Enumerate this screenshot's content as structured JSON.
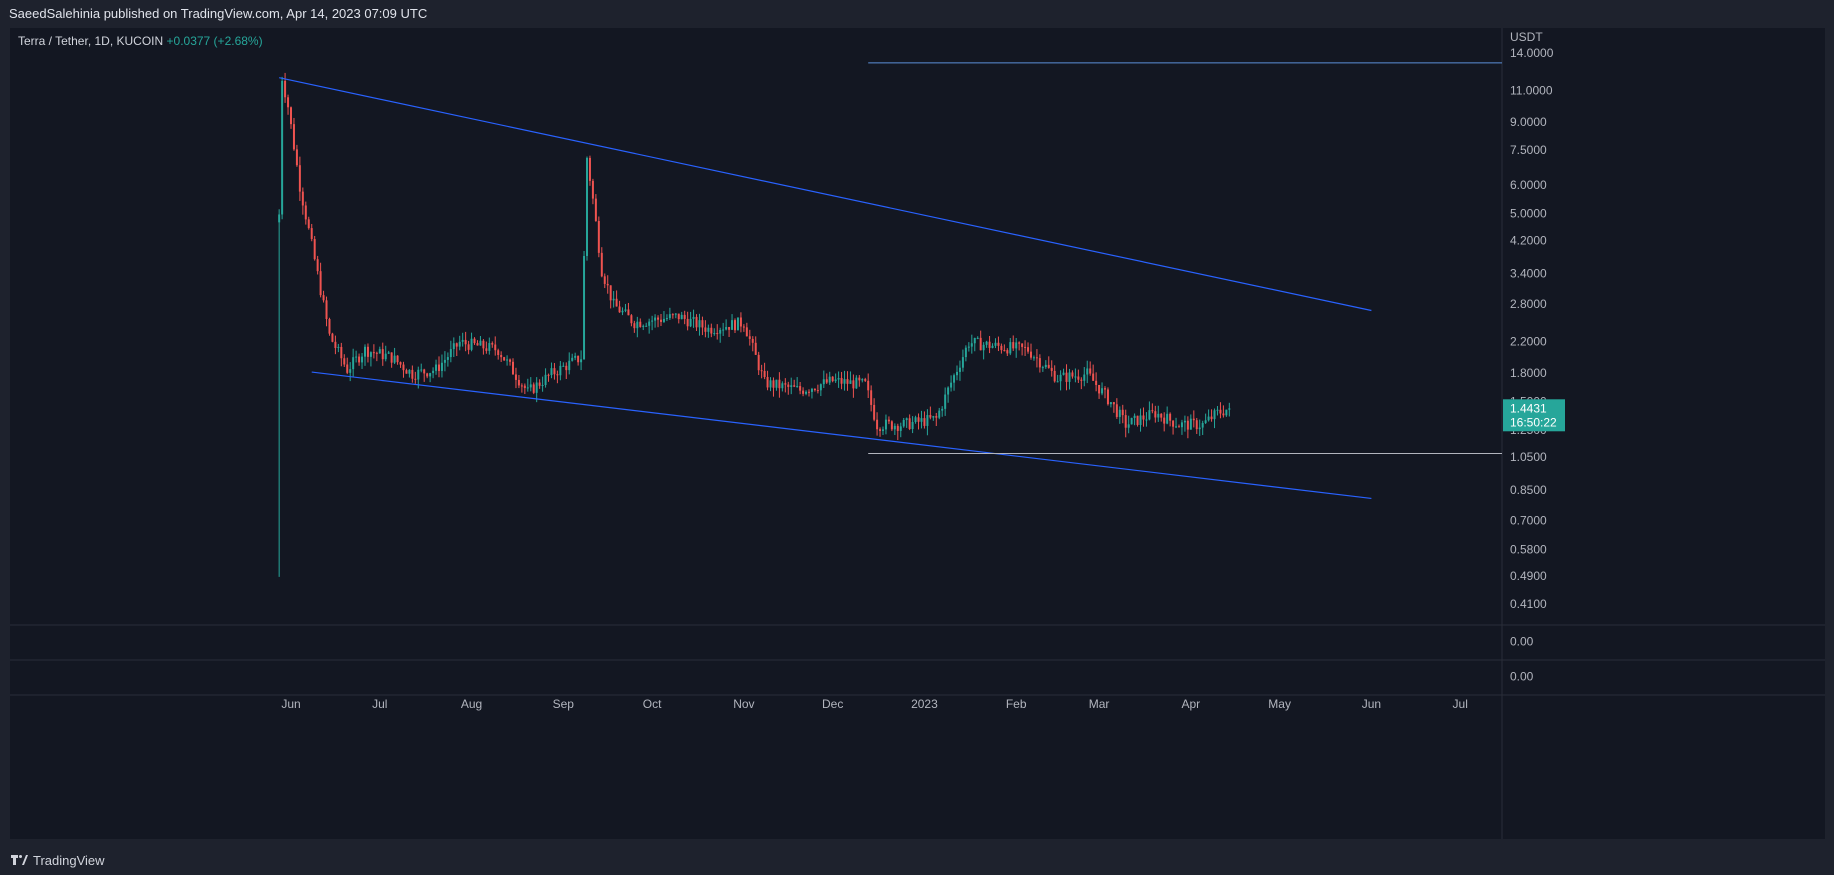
{
  "header": {
    "published_line": "SaeedSalehinia published on TradingView.com, Apr 14, 2023 07:09 UTC"
  },
  "legend": {
    "symbol": "Terra / Tether, 1D, KUCOIN",
    "change": "+0.0377 (+2.68%)"
  },
  "footer": {
    "brand": "TradingView"
  },
  "price_badge": {
    "price": "1.4431",
    "countdown": "16:50:22",
    "color": "#26a69a"
  },
  "colors": {
    "background": "#131722",
    "up": "#26a69a",
    "down": "#ef5350",
    "trendline": "#2962ff",
    "hline_top": "#5b8fd8",
    "hline_support": "#b2b5be"
  },
  "chart_data": {
    "type": "candlestick",
    "ylabel": "USDT",
    "scale": "log",
    "ylim": [
      0.36,
      16.5
    ],
    "y_ticks": [
      14.0,
      11.0,
      9.0,
      7.5,
      6.0,
      5.0,
      4.2,
      3.4,
      2.8,
      2.2,
      1.8,
      1.5,
      1.25,
      1.05,
      0.85,
      0.7,
      0.58,
      0.49,
      0.41
    ],
    "y_tick_labels": [
      "14.0000",
      "11.0000",
      "9.0000",
      "7.5000",
      "6.0000",
      "5.0000",
      "4.2000",
      "3.4000",
      "2.8000",
      "2.2000",
      "1.8000",
      "1.5000",
      "1.2500",
      "1.0500",
      "0.8500",
      "0.7000",
      "0.5800",
      "0.4900",
      "0.4100"
    ],
    "x_ticks": [
      {
        "date": "2022-06-01",
        "label": "Jun"
      },
      {
        "date": "2022-07-01",
        "label": "Jul"
      },
      {
        "date": "2022-08-01",
        "label": "Aug"
      },
      {
        "date": "2022-09-01",
        "label": "Sep"
      },
      {
        "date": "2022-10-01",
        "label": "Oct"
      },
      {
        "date": "2022-11-01",
        "label": "Nov"
      },
      {
        "date": "2022-12-01",
        "label": "Dec"
      },
      {
        "date": "2023-01-01",
        "label": "2023"
      },
      {
        "date": "2023-02-01",
        "label": "Feb"
      },
      {
        "date": "2023-03-01",
        "label": "Mar"
      },
      {
        "date": "2023-04-01",
        "label": "Apr"
      },
      {
        "date": "2023-05-01",
        "label": "May"
      },
      {
        "date": "2023-06-01",
        "label": "Jun"
      },
      {
        "date": "2023-07-01",
        "label": "Jul"
      }
    ],
    "price_anchors": [
      {
        "date": "2022-05-28",
        "price": 5.0
      },
      {
        "date": "2022-05-29",
        "price": 12.0
      },
      {
        "date": "2022-05-31",
        "price": 10.0
      },
      {
        "date": "2022-06-04",
        "price": 6.0
      },
      {
        "date": "2022-06-10",
        "price": 3.4
      },
      {
        "date": "2022-06-14",
        "price": 2.3
      },
      {
        "date": "2022-06-20",
        "price": 1.85
      },
      {
        "date": "2022-06-26",
        "price": 2.1
      },
      {
        "date": "2022-07-05",
        "price": 2.0
      },
      {
        "date": "2022-07-12",
        "price": 1.8
      },
      {
        "date": "2022-07-20",
        "price": 1.85
      },
      {
        "date": "2022-07-28",
        "price": 2.2
      },
      {
        "date": "2022-08-10",
        "price": 2.1
      },
      {
        "date": "2022-08-20",
        "price": 1.6
      },
      {
        "date": "2022-08-28",
        "price": 1.8
      },
      {
        "date": "2022-09-07",
        "price": 2.0
      },
      {
        "date": "2022-09-09",
        "price": 7.2
      },
      {
        "date": "2022-09-11",
        "price": 5.5
      },
      {
        "date": "2022-09-14",
        "price": 3.5
      },
      {
        "date": "2022-09-18",
        "price": 2.8
      },
      {
        "date": "2022-09-25",
        "price": 2.5
      },
      {
        "date": "2022-10-10",
        "price": 2.6
      },
      {
        "date": "2022-10-20",
        "price": 2.4
      },
      {
        "date": "2022-11-01",
        "price": 2.5
      },
      {
        "date": "2022-11-08",
        "price": 1.7
      },
      {
        "date": "2022-11-20",
        "price": 1.62
      },
      {
        "date": "2022-12-01",
        "price": 1.72
      },
      {
        "date": "2022-12-12",
        "price": 1.68
      },
      {
        "date": "2022-12-16",
        "price": 1.3
      },
      {
        "date": "2022-12-25",
        "price": 1.3
      },
      {
        "date": "2023-01-05",
        "price": 1.35
      },
      {
        "date": "2023-01-10",
        "price": 1.7
      },
      {
        "date": "2023-01-16",
        "price": 2.2
      },
      {
        "date": "2023-01-25",
        "price": 2.15
      },
      {
        "date": "2023-02-05",
        "price": 2.1
      },
      {
        "date": "2023-02-15",
        "price": 1.75
      },
      {
        "date": "2023-02-25",
        "price": 1.8
      },
      {
        "date": "2023-03-05",
        "price": 1.5
      },
      {
        "date": "2023-03-10",
        "price": 1.3
      },
      {
        "date": "2023-03-20",
        "price": 1.4
      },
      {
        "date": "2023-03-28",
        "price": 1.3
      },
      {
        "date": "2023-04-05",
        "price": 1.3
      },
      {
        "date": "2023-04-10",
        "price": 1.4
      },
      {
        "date": "2023-04-14",
        "price": 1.4431
      }
    ],
    "first_candle_low": 0.49,
    "trendlines": [
      {
        "name": "upper",
        "start": {
          "date": "2022-05-28",
          "price": 12.0
        },
        "end": {
          "date": "2023-06-01",
          "price": 2.7
        }
      },
      {
        "name": "lower",
        "start": {
          "date": "2022-06-08",
          "price": 1.82
        },
        "end": {
          "date": "2023-06-01",
          "price": 0.81
        }
      }
    ],
    "horizontal_lines": [
      {
        "name": "resistance",
        "price": 13.2,
        "from_date": "2022-12-13"
      },
      {
        "name": "support",
        "price": 1.08,
        "from_date": "2022-12-13"
      }
    ],
    "lower_panes": [
      {
        "value_label": "0.00"
      },
      {
        "value_label": "0.00"
      }
    ]
  }
}
